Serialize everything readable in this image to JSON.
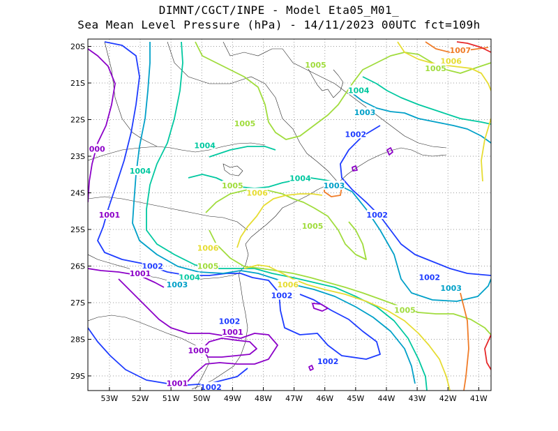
{
  "title_line1": "DIMNT/CGCT/INPE -  Model Eta05_M01_",
  "title_line2": "Sea Mean Level Pressure (hPa) - 14/11/2023 00UTC fct=109h",
  "lat_ticks": [
    "20S",
    "21S",
    "22S",
    "23S",
    "24S",
    "25S",
    "26S",
    "27S",
    "28S",
    "29S"
  ],
  "lon_ticks": [
    "53W",
    "52W",
    "51W",
    "50W",
    "49W",
    "48W",
    "47W",
    "46W",
    "45W",
    "44W",
    "43W",
    "42W",
    "41W"
  ],
  "colors": {
    "1000": "#8c00c8",
    "1001": "#8c00c8",
    "1002": "#1e3cff",
    "1003": "#00a0c8",
    "1004": "#00c8a0",
    "1005": "#a0dc3c",
    "1006": "#e6dc32",
    "1007": "#f07c28",
    "1008": "#e6282a"
  },
  "contour_labels": [
    {
      "text": "1007",
      "lon": -41.6,
      "lat": -20.1,
      "level": "1007"
    },
    {
      "text": "1006",
      "lon": -41.9,
      "lat": -20.4,
      "level": "1006"
    },
    {
      "text": "1005",
      "lon": -46.3,
      "lat": -20.5,
      "level": "1005"
    },
    {
      "text": "1005",
      "lon": -42.4,
      "lat": -20.6,
      "level": "1005"
    },
    {
      "text": "1004",
      "lon": -44.9,
      "lat": -21.2,
      "level": "1004"
    },
    {
      "text": "1003",
      "lon": -44.7,
      "lat": -21.8,
      "level": "1003"
    },
    {
      "text": "1005",
      "lon": -48.6,
      "lat": -22.1,
      "level": "1005"
    },
    {
      "text": "1002",
      "lon": -45.0,
      "lat": -22.4,
      "level": "1002"
    },
    {
      "text": "1004",
      "lon": -49.9,
      "lat": -22.7,
      "level": "1004"
    },
    {
      "text": "000",
      "lon": -53.4,
      "lat": -22.8,
      "level": "1000"
    },
    {
      "text": "1004",
      "lon": -52.0,
      "lat": -23.4,
      "level": "1004"
    },
    {
      "text": "1004",
      "lon": -46.8,
      "lat": -23.6,
      "level": "1004"
    },
    {
      "text": "1005",
      "lon": -49.0,
      "lat": -23.8,
      "level": "1005"
    },
    {
      "text": "1006",
      "lon": -48.2,
      "lat": -24.0,
      "level": "1006"
    },
    {
      "text": "1003",
      "lon": -45.7,
      "lat": -23.8,
      "level": "1003"
    },
    {
      "text": "1001",
      "lon": -53.0,
      "lat": -24.6,
      "level": "1001"
    },
    {
      "text": "1002",
      "lon": -44.3,
      "lat": -24.6,
      "level": "1002"
    },
    {
      "text": "1005",
      "lon": -46.4,
      "lat": -24.9,
      "level": "1005"
    },
    {
      "text": "1006",
      "lon": -49.8,
      "lat": -25.5,
      "level": "1006"
    },
    {
      "text": "1002",
      "lon": -51.6,
      "lat": -26.0,
      "level": "1002"
    },
    {
      "text": "1005",
      "lon": -49.8,
      "lat": -26.0,
      "level": "1005"
    },
    {
      "text": "1001",
      "lon": -52.0,
      "lat": -26.2,
      "level": "1001"
    },
    {
      "text": "1004",
      "lon": -50.4,
      "lat": -26.3,
      "level": "1004"
    },
    {
      "text": "1002",
      "lon": -42.6,
      "lat": -26.3,
      "level": "1002"
    },
    {
      "text": "1003",
      "lon": -50.8,
      "lat": -26.5,
      "level": "1003"
    },
    {
      "text": "1006",
      "lon": -47.2,
      "lat": -26.5,
      "level": "1006"
    },
    {
      "text": "1003",
      "lon": -41.9,
      "lat": -26.6,
      "level": "1003"
    },
    {
      "text": "1002",
      "lon": -47.4,
      "lat": -26.8,
      "level": "1002"
    },
    {
      "text": "1005",
      "lon": -43.4,
      "lat": -27.2,
      "level": "1005"
    },
    {
      "text": "1002",
      "lon": -49.1,
      "lat": -27.5,
      "level": "1002"
    },
    {
      "text": "1001",
      "lon": -49.0,
      "lat": -27.8,
      "level": "1001"
    },
    {
      "text": "1000",
      "lon": -50.1,
      "lat": -28.3,
      "level": "1000"
    },
    {
      "text": "1002",
      "lon": -45.9,
      "lat": -28.6,
      "level": "1002"
    },
    {
      "text": "1001",
      "lon": -50.8,
      "lat": -29.2,
      "level": "1001"
    },
    {
      "text": "1002",
      "lon": -49.7,
      "lat": -29.3,
      "level": "1002"
    }
  ]
}
